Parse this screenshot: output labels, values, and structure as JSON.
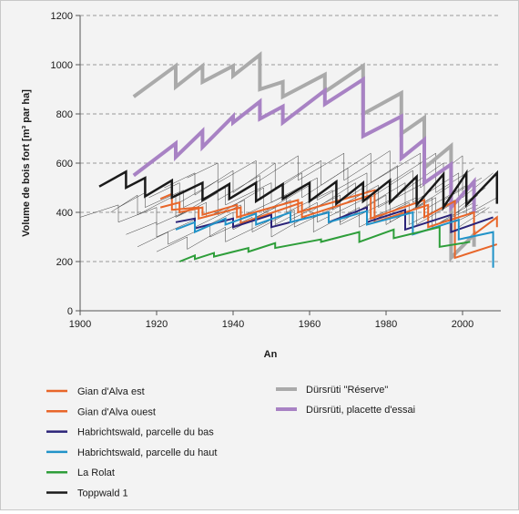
{
  "chart_data": {
    "type": "line",
    "title": "",
    "xlabel": "An",
    "ylabel": "Volume de bois fort [m³ par ha]",
    "xlim": [
      1900,
      2010
    ],
    "ylim": [
      0,
      1200
    ],
    "x_ticks": [
      "1900",
      "1920",
      "1940",
      "1960",
      "1980",
      "2000"
    ],
    "y_ticks": [
      "0",
      "200",
      "400",
      "600",
      "800",
      "1000",
      "1200"
    ],
    "grid": "horizontal dashed",
    "legend_placement": "bottom",
    "series": [
      {
        "name": "Gian d'Alva  est",
        "color": "#e8662a",
        "width": 2,
        "x": [
          1921,
          1924,
          1924,
          1931,
          1931,
          1942,
          1942,
          1958,
          1958,
          1976,
          1976,
          1990,
          1990,
          1998,
          1998,
          2009
        ],
        "y": [
          455,
          475,
          410,
          420,
          375,
          420,
          355,
          440,
          380,
          470,
          375,
          450,
          380,
          445,
          215,
          270
        ]
      },
      {
        "name": "Gian d'Alva  ouest",
        "color": "#e8662a",
        "width": 2,
        "x": [
          1921,
          1926,
          1926,
          1932,
          1932,
          1941,
          1941,
          1957,
          1957,
          1977,
          1977,
          1991,
          1991,
          2003,
          2003,
          2009,
          2009
        ],
        "y": [
          420,
          440,
          400,
          420,
          390,
          430,
          380,
          450,
          400,
          490,
          360,
          430,
          340,
          400,
          310,
          380,
          340
        ]
      },
      {
        "name": "Habrichtswald, parcelle du bas",
        "color": "#2b2378",
        "width": 2,
        "x": [
          1925,
          1930,
          1930,
          1940,
          1940,
          1950,
          1950,
          1965,
          1965,
          1975,
          1975,
          1985,
          1985,
          1997,
          1997,
          2008
        ],
        "y": [
          360,
          375,
          335,
          375,
          340,
          390,
          340,
          400,
          360,
          420,
          360,
          410,
          330,
          390,
          320,
          380
        ]
      },
      {
        "name": "Habrichtswald, parcelle du haut",
        "color": "#2193c8",
        "width": 2,
        "x": [
          1925,
          1930,
          1930,
          1938,
          1938,
          1946,
          1946,
          1955,
          1955,
          1965,
          1965,
          1975,
          1975,
          1987,
          1987,
          1999,
          1999,
          2008,
          2008
        ],
        "y": [
          330,
          360,
          320,
          375,
          350,
          395,
          350,
          400,
          360,
          400,
          360,
          405,
          350,
          400,
          310,
          370,
          290,
          320,
          175
        ]
      },
      {
        "name": "La Rolat",
        "color": "#2e9e3a",
        "width": 2,
        "x": [
          1926,
          1930,
          1930,
          1935,
          1935,
          1944,
          1944,
          1951,
          1951,
          1963,
          1963,
          1973,
          1973,
          1982,
          1982,
          1994,
          1994,
          2002
        ],
        "y": [
          200,
          225,
          210,
          235,
          220,
          255,
          240,
          275,
          255,
          290,
          280,
          320,
          280,
          330,
          295,
          340,
          260,
          280
        ]
      },
      {
        "name": "Toppwald 1",
        "color": "#1a1a1a",
        "width": 2.5,
        "x": [
          1905,
          1912,
          1912,
          1917,
          1917,
          1924,
          1924,
          1932,
          1932,
          1939,
          1939,
          1946,
          1946,
          1953,
          1953,
          1960,
          1960,
          1967,
          1967,
          1974,
          1974,
          1981,
          1981,
          1988,
          1988,
          1995,
          1995,
          2001,
          2001,
          2009,
          2009
        ],
        "y": [
          505,
          565,
          500,
          540,
          465,
          530,
          460,
          520,
          450,
          515,
          455,
          520,
          445,
          515,
          455,
          520,
          445,
          525,
          435,
          520,
          445,
          530,
          440,
          545,
          430,
          555,
          420,
          560,
          430,
          560,
          435
        ]
      },
      {
        "name": "Dürsrüti \"Réserve\"",
        "color": "#aaaaaa",
        "width": 4,
        "x": [
          1914,
          1925,
          1925,
          1932,
          1932,
          1940,
          1940,
          1947,
          1947,
          1953,
          1953,
          1964,
          1964,
          1974,
          1974,
          1984,
          1984,
          1990,
          1990,
          1997,
          1997,
          2003,
          2003
        ],
        "y": [
          870,
          995,
          910,
          995,
          930,
          995,
          955,
          1040,
          900,
          930,
          870,
          960,
          890,
          995,
          800,
          885,
          720,
          785,
          580,
          670,
          215,
          310,
          260
        ]
      },
      {
        "name": "Dürsrüti, placette d'essai",
        "color": "#a882c4",
        "width": 4,
        "x": [
          1914,
          1925,
          1925,
          1932,
          1932,
          1940,
          1940,
          1947,
          1947,
          1953,
          1953,
          1964,
          1964,
          1974,
          1974,
          1984,
          1984,
          1990,
          1990,
          1997,
          1997,
          2003,
          2003
        ],
        "y": [
          550,
          680,
          625,
          730,
          665,
          790,
          765,
          850,
          780,
          830,
          765,
          895,
          840,
          940,
          710,
          790,
          620,
          695,
          520,
          595,
          420,
          525,
          400
        ]
      }
    ],
    "thin_lines": [
      {
        "x": [
          1900,
          1910,
          1910,
          1920,
          1920,
          1930,
          1930,
          1942,
          1942,
          1955,
          1955,
          1968,
          1968,
          1980,
          1980,
          1992,
          1992,
          2003
        ],
        "y": [
          380,
          430,
          360,
          420,
          350,
          420,
          340,
          430,
          350,
          450,
          370,
          470,
          360,
          470,
          350,
          460,
          340,
          440
        ]
      },
      {
        "x": [
          1908,
          1915,
          1915,
          1925,
          1925,
          1936,
          1936,
          1948,
          1948,
          1960,
          1960,
          1972,
          1972,
          1985,
          1985,
          1997,
          1997,
          2004
        ],
        "y": [
          400,
          470,
          390,
          470,
          380,
          480,
          390,
          500,
          400,
          510,
          400,
          520,
          400,
          520,
          390,
          510,
          380,
          470
        ]
      },
      {
        "x": [
          1912,
          1920,
          1920,
          1930,
          1930,
          1940,
          1940,
          1951,
          1951,
          1962,
          1962,
          1975,
          1975,
          1988,
          1988,
          1999,
          1999,
          2007
        ],
        "y": [
          310,
          360,
          300,
          370,
          320,
          400,
          330,
          420,
          350,
          440,
          360,
          460,
          370,
          460,
          350,
          450,
          340,
          420
        ]
      },
      {
        "x": [
          1915,
          1923,
          1923,
          1934,
          1934,
          1945,
          1945,
          1956,
          1956,
          1968,
          1968,
          1981,
          1981,
          1993,
          1993,
          2004
        ],
        "y": [
          260,
          320,
          270,
          350,
          300,
          380,
          320,
          410,
          340,
          430,
          350,
          450,
          360,
          460,
          350,
          430
        ]
      },
      {
        "x": [
          1920,
          1928,
          1928,
          1938,
          1938,
          1950,
          1950,
          1961,
          1961,
          1973,
          1973,
          1986,
          1986,
          1998,
          1998,
          2006
        ],
        "y": [
          240,
          300,
          250,
          340,
          280,
          370,
          300,
          400,
          320,
          420,
          340,
          440,
          350,
          450,
          360,
          420
        ]
      },
      {
        "x": [
          1918,
          1926,
          1926,
          1936,
          1936,
          1947,
          1947,
          1958,
          1958,
          1970,
          1970,
          1983,
          1983,
          1995,
          1995,
          2005
        ],
        "y": [
          460,
          520,
          440,
          530,
          450,
          550,
          450,
          560,
          460,
          580,
          460,
          590,
          470,
          600,
          450,
          540
        ]
      },
      {
        "x": [
          1922,
          1930,
          1930,
          1940,
          1940,
          1951,
          1951,
          1963,
          1963,
          1976,
          1976,
          1989,
          1989,
          2000,
          2000,
          2008
        ],
        "y": [
          500,
          560,
          470,
          570,
          480,
          600,
          500,
          610,
          510,
          640,
          520,
          640,
          500,
          630,
          460,
          560
        ]
      },
      {
        "x": [
          1910,
          1917,
          1917,
          1927,
          1927,
          1938,
          1938,
          1950,
          1950,
          1962,
          1962,
          1975,
          1975,
          1987,
          1987,
          1999,
          1999,
          2006
        ],
        "y": [
          420,
          480,
          420,
          490,
          420,
          500,
          430,
          520,
          440,
          540,
          450,
          560,
          450,
          570,
          440,
          560,
          420,
          500
        ]
      },
      {
        "x": [
          1925,
          1933,
          1933,
          1943,
          1943,
          1954,
          1954,
          1966,
          1966,
          1978,
          1978,
          1990,
          1990,
          2001,
          2001,
          2009
        ],
        "y": [
          380,
          440,
          380,
          450,
          390,
          470,
          400,
          490,
          410,
          510,
          420,
          520,
          410,
          510,
          390,
          460
        ]
      },
      {
        "x": [
          1928,
          1936,
          1936,
          1946,
          1946,
          1957,
          1957,
          1969,
          1969,
          1981,
          1981,
          1993,
          1993,
          2003
        ],
        "y": [
          540,
          600,
          520,
          610,
          520,
          630,
          530,
          640,
          530,
          650,
          520,
          640,
          480,
          580
        ]
      }
    ],
    "legend_col1": [
      "Gian d'Alva  est",
      "Gian d'Alva  ouest",
      "Habrichtswald, parcelle du bas",
      "Habrichtswald, parcelle du haut",
      "La Rolat",
      "Toppwald 1"
    ],
    "legend_col2": [
      "Dürsrüti \"Réserve\"",
      "Dürsrüti, placette d'essai"
    ]
  }
}
